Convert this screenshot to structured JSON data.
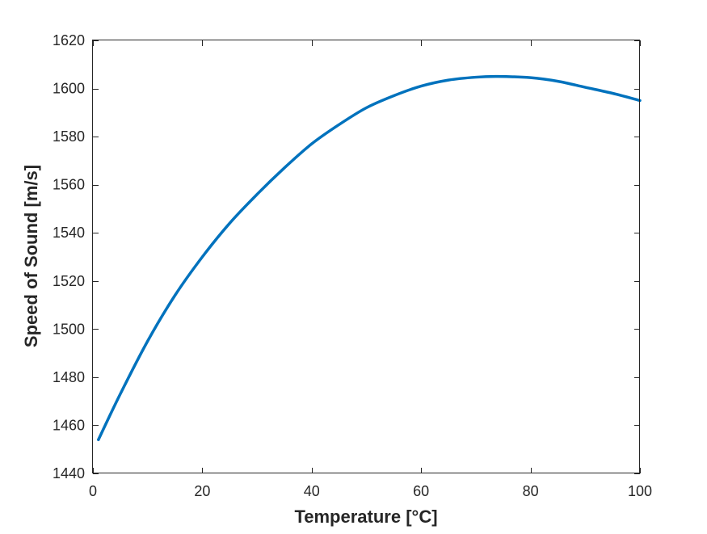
{
  "chart_data": {
    "type": "line",
    "title": "",
    "xlabel": "Temperature [°C]",
    "ylabel": "Speed of Sound [m/s]",
    "xlim": [
      0,
      100
    ],
    "ylim": [
      1440,
      1620
    ],
    "xticks": [
      0,
      20,
      40,
      60,
      80,
      100
    ],
    "yticks": [
      1440,
      1460,
      1480,
      1500,
      1520,
      1540,
      1560,
      1580,
      1600,
      1620
    ],
    "grid": false,
    "legend": null,
    "series": [
      {
        "color": "#0072BD",
        "x": [
          1,
          5,
          10,
          15,
          20,
          25,
          30,
          35,
          40,
          45,
          50,
          55,
          60,
          65,
          70,
          74,
          80,
          85,
          90,
          95,
          100
        ],
        "y": [
          1454,
          1473,
          1495,
          1514,
          1530,
          1544,
          1556,
          1567,
          1577,
          1585,
          1592,
          1597,
          1601,
          1603.5,
          1604.7,
          1605,
          1604.5,
          1603,
          1600.5,
          1598,
          1595
        ]
      }
    ]
  }
}
